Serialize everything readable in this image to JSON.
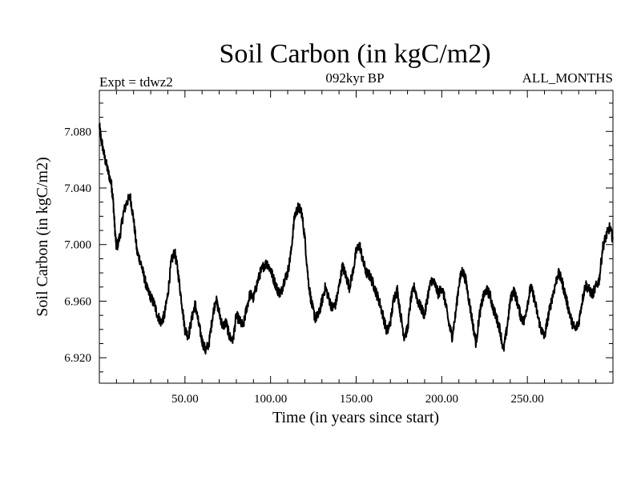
{
  "chart_data": {
    "type": "line",
    "title": "Soil Carbon (in kgC/m2)",
    "header_left": "Expt = tdwz2",
    "header_center": "092kyr BP",
    "header_right": "ALL_MONTHS",
    "xlabel": "Time (in years since start)",
    "ylabel": "Soil Carbon (in kgC/m2)",
    "xlim": [
      0,
      300
    ],
    "ylim": [
      6.902,
      7.109
    ],
    "x_ticks": [
      50,
      100,
      150,
      200,
      250
    ],
    "x_tick_labels": [
      "50.00",
      "100.00",
      "150.00",
      "200.00",
      "250.00"
    ],
    "y_ticks": [
      6.92,
      6.96,
      7.0,
      7.04,
      7.08
    ],
    "y_tick_labels": [
      "6.920",
      "6.960",
      "7.000",
      "7.040",
      "7.080"
    ],
    "grid": false,
    "line_color": "#000000",
    "series": [
      {
        "x": [
          0,
          1,
          3,
          5,
          7,
          8,
          9,
          10,
          12,
          14,
          16,
          18,
          20,
          22,
          24,
          26,
          28,
          30,
          32,
          34,
          36,
          38,
          40,
          42,
          44,
          46,
          48,
          50,
          52,
          54,
          56,
          58,
          60,
          62,
          64,
          66,
          68,
          70,
          72,
          74,
          76,
          78,
          80,
          82,
          84,
          86,
          88,
          90,
          92,
          94,
          96,
          98,
          100,
          102,
          104,
          106,
          108,
          110,
          112,
          114,
          116,
          118,
          120,
          122,
          124,
          126,
          128,
          130,
          132,
          134,
          136,
          138,
          140,
          142,
          144,
          146,
          148,
          150,
          152,
          154,
          156,
          158,
          160,
          162,
          164,
          166,
          168,
          170,
          172,
          174,
          176,
          178,
          180,
          182,
          184,
          186,
          188,
          190,
          192,
          194,
          196,
          198,
          200,
          202,
          204,
          206,
          208,
          210,
          212,
          214,
          216,
          218,
          220,
          222,
          224,
          226,
          228,
          230,
          232,
          234,
          236,
          238,
          240,
          242,
          244,
          246,
          248,
          250,
          252,
          254,
          256,
          258,
          260,
          262,
          264,
          266,
          268,
          270,
          272,
          274,
          276,
          278,
          280,
          282,
          284,
          286,
          288,
          290,
          292,
          294,
          296,
          298,
          300
        ],
        "values": [
          7.084,
          7.075,
          7.062,
          7.052,
          7.043,
          7.032,
          7.012,
          6.997,
          7.006,
          7.022,
          7.03,
          7.034,
          7.018,
          6.995,
          6.988,
          6.978,
          6.968,
          6.963,
          6.958,
          6.95,
          6.945,
          6.95,
          6.965,
          6.988,
          6.995,
          6.98,
          6.96,
          6.94,
          6.935,
          6.948,
          6.958,
          6.944,
          6.932,
          6.925,
          6.93,
          6.948,
          6.962,
          6.952,
          6.942,
          6.945,
          6.935,
          6.932,
          6.95,
          6.946,
          6.942,
          6.955,
          6.965,
          6.962,
          6.972,
          6.98,
          6.985,
          6.987,
          6.982,
          6.975,
          6.968,
          6.965,
          6.975,
          6.98,
          6.995,
          7.02,
          7.026,
          7.024,
          7.005,
          6.975,
          6.958,
          6.948,
          6.95,
          6.96,
          6.97,
          6.962,
          6.955,
          6.958,
          6.97,
          6.985,
          6.978,
          6.97,
          6.98,
          6.995,
          7.0,
          6.988,
          6.98,
          6.978,
          6.972,
          6.965,
          6.958,
          6.948,
          6.938,
          6.945,
          6.962,
          6.968,
          6.95,
          6.935,
          6.94,
          6.962,
          6.97,
          6.96,
          6.955,
          6.95,
          6.965,
          6.975,
          6.972,
          6.965,
          6.97,
          6.96,
          6.945,
          6.935,
          6.95,
          6.972,
          6.982,
          6.975,
          6.96,
          6.945,
          6.93,
          6.95,
          6.962,
          6.968,
          6.965,
          6.955,
          6.948,
          6.94,
          6.925,
          6.94,
          6.96,
          6.968,
          6.96,
          6.95,
          6.945,
          6.958,
          6.97,
          6.962,
          6.95,
          6.94,
          6.935,
          6.948,
          6.96,
          6.97,
          6.98,
          6.975,
          6.965,
          6.955,
          6.945,
          6.94,
          6.945,
          6.96,
          6.972,
          6.968,
          6.965,
          6.97,
          6.975,
          6.998,
          7.006,
          7.012,
          7.004
        ]
      }
    ]
  }
}
